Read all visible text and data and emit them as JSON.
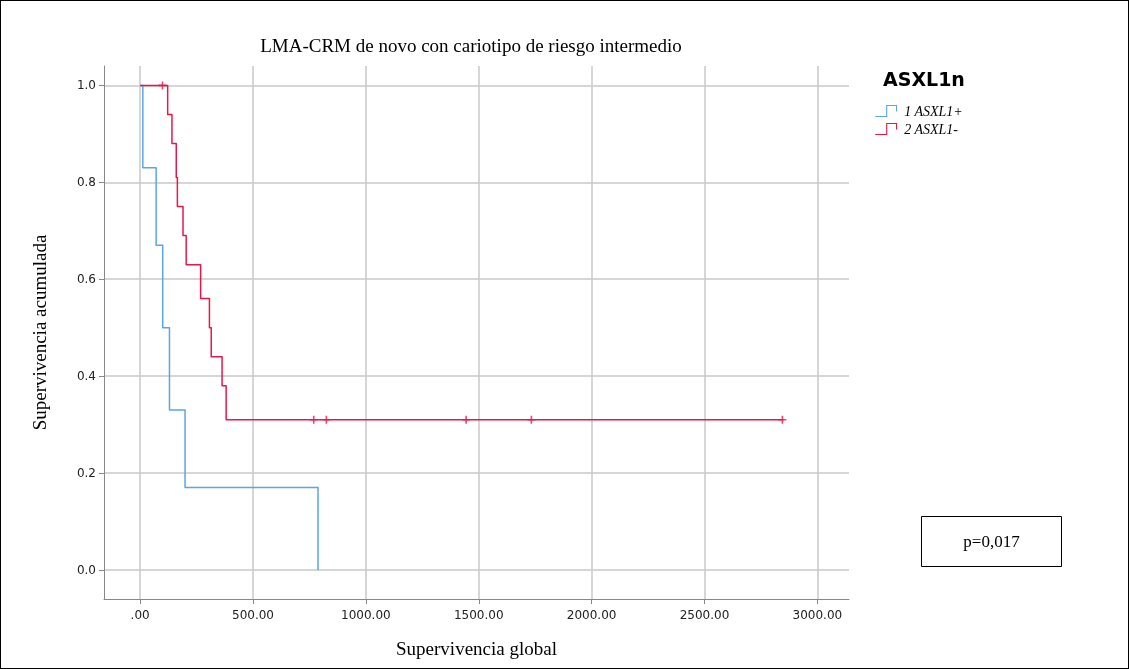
{
  "chart_data": {
    "type": "step",
    "title": "LMA-CRM de novo con cariotipo de riesgo intermedio",
    "xlabel": "Supervivencia global",
    "ylabel": "Supervivencia acumulada",
    "legend_title": "ASXL1n",
    "annotations": [
      "p=0,017"
    ],
    "series": [
      {
        "name": "1 ASXL1+",
        "color": "#5aa5e8",
        "x": [
          0,
          12,
          71,
          100,
          130,
          199,
          788
        ],
        "values": [
          1,
          0.83,
          0.67,
          0.5,
          0.33,
          0.17,
          0
        ]
      },
      {
        "name": "2 ASXL1-",
        "color": "#e8174a",
        "x": [
          0,
          122,
          141,
          160,
          165,
          190,
          204,
          268,
          307,
          315,
          363,
          381,
          2850
        ],
        "values": [
          1,
          0.94,
          0.88,
          0.81,
          0.75,
          0.69,
          0.63,
          0.56,
          0.5,
          0.44,
          0.38,
          0.31,
          0.31
        ]
      },
      {
        "type": "scatter",
        "marker": "cross",
        "color": "#e8174a",
        "x": [
          99,
          769,
          825,
          1444,
          1733,
          2845
        ],
        "values": [
          1,
          0.31,
          0.31,
          0.31,
          0.31,
          0.31
        ]
      }
    ],
    "xlim": [
      -160,
      3140
    ],
    "xticks": [
      {
        "value": 0,
        "label": ".00"
      },
      {
        "value": 500,
        "label": "500.00"
      },
      {
        "value": 1000,
        "label": "1000.00"
      },
      {
        "value": 1500,
        "label": "1500.00"
      },
      {
        "value": 2000,
        "label": "2000.00"
      },
      {
        "value": 2500,
        "label": "2500.00"
      },
      {
        "value": 3000,
        "label": "3000.00"
      }
    ],
    "ylim": [
      -0.06,
      1.04
    ],
    "yticks": [
      {
        "value": 0,
        "label": "0.0"
      },
      {
        "value": 0.2,
        "label": "0.2"
      },
      {
        "value": 0.4,
        "label": "0.4"
      },
      {
        "value": 0.6,
        "label": "0.6"
      },
      {
        "value": 0.8,
        "label": "0.8"
      },
      {
        "value": 1,
        "label": "1.0"
      }
    ],
    "grid": true,
    "legend": "top right"
  }
}
